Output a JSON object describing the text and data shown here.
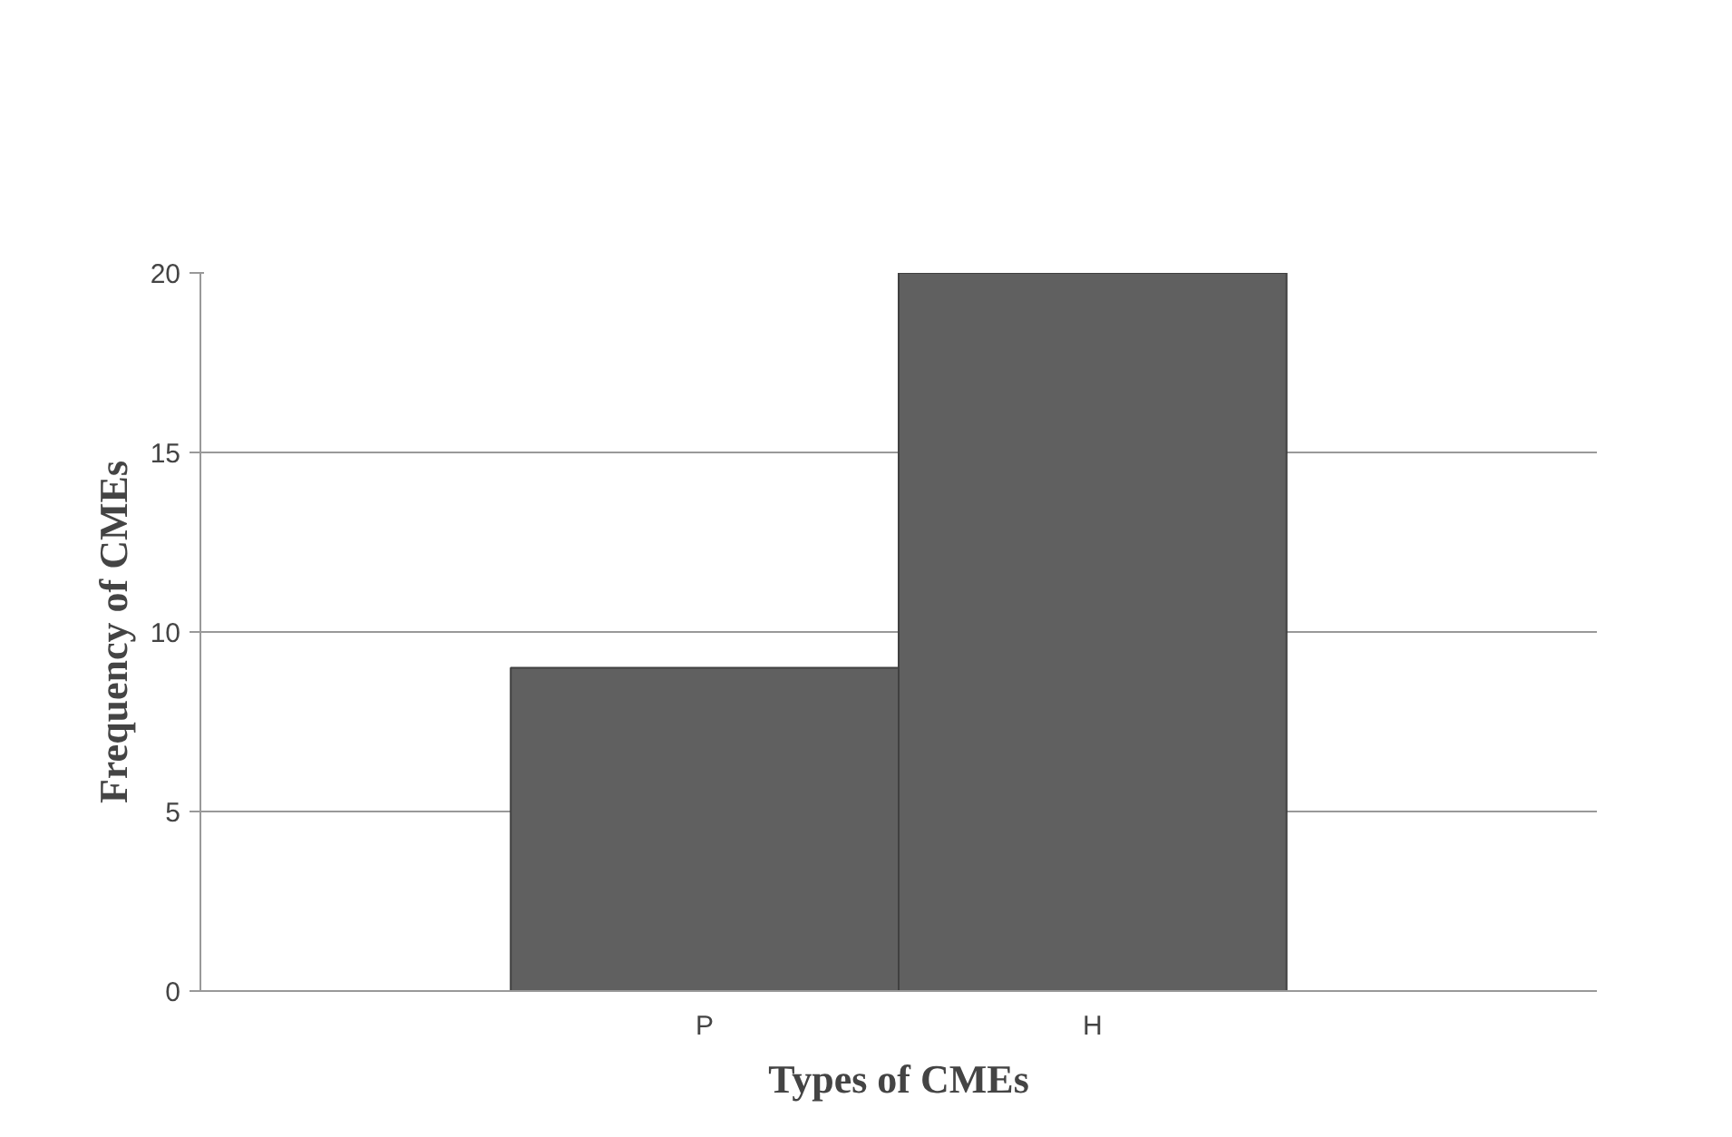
{
  "chart_data": {
    "type": "bar",
    "xlabel": "Types of CMEs",
    "ylabel": "Frequency of CMEs",
    "categories": [
      "P",
      "H"
    ],
    "values": [
      9,
      20
    ],
    "color": "#606060",
    "ylim": [
      0,
      20
    ],
    "yticks": [
      0,
      5,
      10,
      15,
      20
    ],
    "grid": "y"
  }
}
